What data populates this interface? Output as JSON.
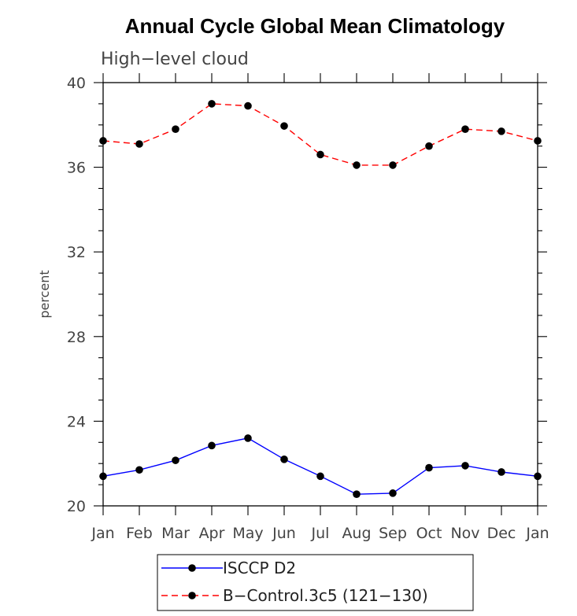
{
  "chart_data": {
    "type": "line",
    "title": "Annual Cycle Global Mean Climatology",
    "subtitle": "High−level cloud",
    "xlabel": "",
    "ylabel": "percent",
    "categories": [
      "Jan",
      "Feb",
      "Mar",
      "Apr",
      "May",
      "Jun",
      "Jul",
      "Aug",
      "Sep",
      "Oct",
      "Nov",
      "Dec",
      "Jan"
    ],
    "ylim": [
      20,
      40
    ],
    "yticks": [
      20,
      24,
      28,
      32,
      36,
      40
    ],
    "grid": false,
    "legend_position": "bottom",
    "series": [
      {
        "name": "ISCCP D2",
        "color": "#0000ff",
        "line_style": "solid",
        "marker": "filled-circle",
        "values": [
          21.4,
          21.7,
          22.15,
          22.85,
          23.2,
          22.2,
          21.4,
          20.55,
          20.6,
          21.8,
          21.9,
          21.6,
          21.4
        ]
      },
      {
        "name": "B−Control.3c5 (121−130)",
        "color": "#ff0000",
        "line_style": "dashed",
        "marker": "filled-circle",
        "values": [
          37.25,
          37.1,
          37.8,
          39.0,
          38.9,
          37.95,
          36.6,
          36.1,
          36.1,
          37.0,
          37.8,
          37.7,
          37.25
        ]
      }
    ]
  }
}
